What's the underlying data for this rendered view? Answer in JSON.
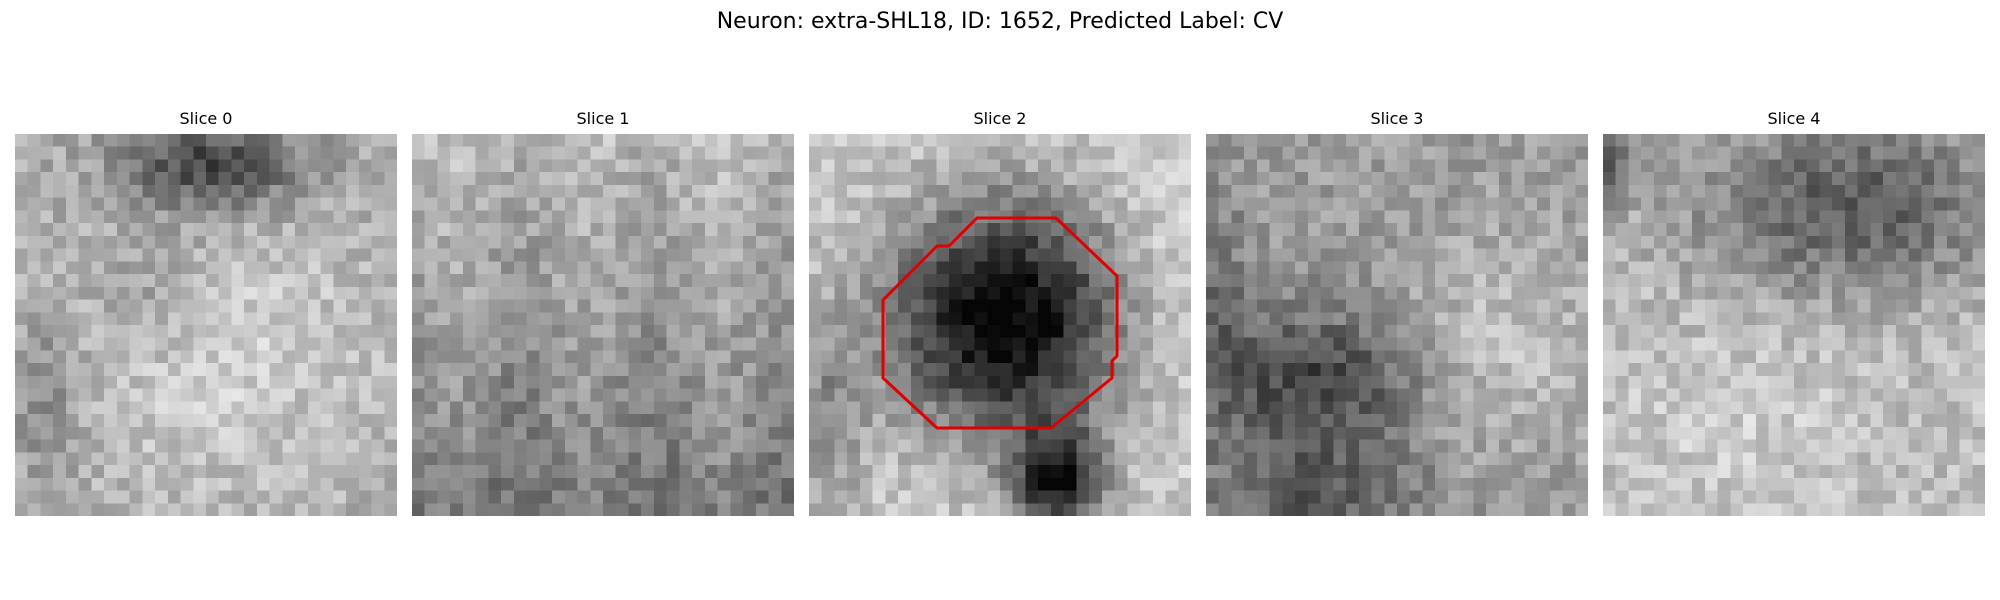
{
  "figure": {
    "title": "Neuron: extra-SHL18, ID: 1652, Predicted Label: CV"
  },
  "slices": [
    {
      "label": "Slice 0"
    },
    {
      "label": "Slice 1"
    },
    {
      "label": "Slice 2"
    },
    {
      "label": "Slice 3"
    },
    {
      "label": "Slice 4"
    }
  ],
  "colors": {
    "contour": "#e00000",
    "background": "#ffffff"
  }
}
